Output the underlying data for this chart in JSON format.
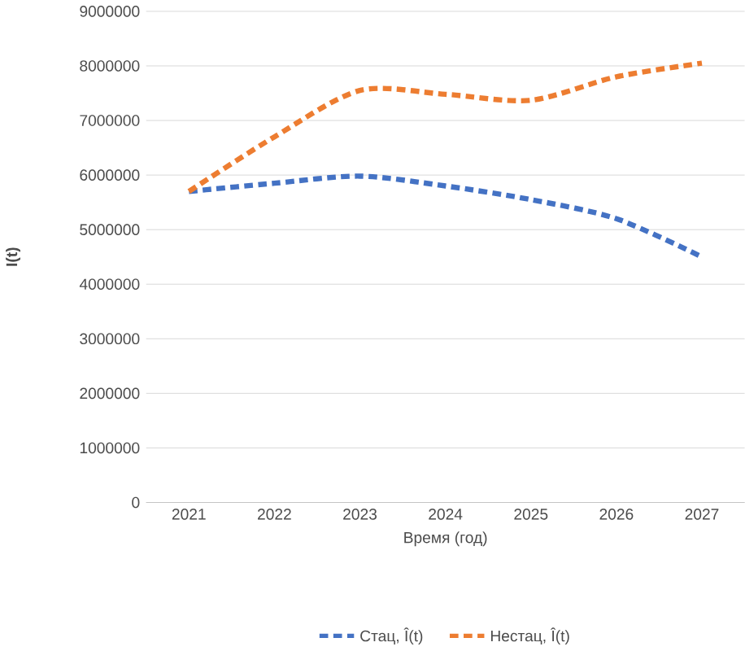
{
  "chart_data": {
    "type": "line",
    "xlabel": "Время (год)",
    "ylabel": "I(t)",
    "categories": [
      "2021",
      "2022",
      "2023",
      "2024",
      "2025",
      "2026",
      "2027"
    ],
    "series": [
      {
        "name": "Стац, Î(t)",
        "color": "#4472c4",
        "values": [
          5700000,
          5850000,
          5980000,
          5800000,
          5550000,
          5200000,
          4500000
        ]
      },
      {
        "name": "Нестац, Î(t)",
        "color": "#ed7d31",
        "values": [
          5700000,
          6700000,
          7550000,
          7480000,
          7370000,
          7800000,
          8050000
        ]
      }
    ],
    "ylim": [
      0,
      9000000
    ],
    "yticks": [
      0,
      1000000,
      2000000,
      3000000,
      4000000,
      5000000,
      6000000,
      7000000,
      8000000,
      9000000
    ],
    "grid": "y",
    "legend": "bottom",
    "line_style": "dashed",
    "marker": "none"
  }
}
